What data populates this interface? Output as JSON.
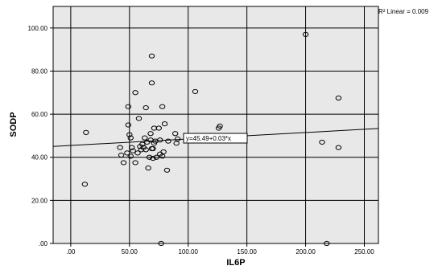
{
  "chart_data": {
    "type": "scatter",
    "title": "",
    "xlabel": "IL6P",
    "ylabel": "SODP",
    "xlim": [
      -15,
      262
    ],
    "ylim": [
      0,
      110
    ],
    "x_ticks": [
      0,
      50,
      100,
      150,
      200,
      250
    ],
    "y_ticks": [
      0,
      20,
      40,
      60,
      80,
      100
    ],
    "x_tick_labels": [
      ".00",
      "50.00",
      "100.00",
      "150.00",
      "200.00",
      "250.00"
    ],
    "y_tick_labels": [
      ".00",
      "20.00",
      "40.00",
      "60.00",
      "80.00",
      "100.00"
    ],
    "grid": true,
    "plot_background": "#e8e8e8",
    "point_color": "#000000",
    "fit_line": {
      "intercept": 45.49,
      "slope": 0.03,
      "label": "y=45.49+0.03*x"
    },
    "r2_label": "R² Linear = 0.009",
    "points": [
      {
        "x": 12,
        "y": 27.5
      },
      {
        "x": 13,
        "y": 51.5
      },
      {
        "x": 42,
        "y": 44.5
      },
      {
        "x": 43,
        "y": 41
      },
      {
        "x": 45,
        "y": 37.5
      },
      {
        "x": 48,
        "y": 42
      },
      {
        "x": 49,
        "y": 55
      },
      {
        "x": 49,
        "y": 63.5
      },
      {
        "x": 50,
        "y": 50.5
      },
      {
        "x": 51,
        "y": 49
      },
      {
        "x": 51,
        "y": 40.5
      },
      {
        "x": 52,
        "y": 44.5
      },
      {
        "x": 53,
        "y": 43
      },
      {
        "x": 55,
        "y": 37.5
      },
      {
        "x": 55,
        "y": 70
      },
      {
        "x": 57,
        "y": 42
      },
      {
        "x": 58,
        "y": 58
      },
      {
        "x": 59,
        "y": 45
      },
      {
        "x": 60,
        "y": 43.5
      },
      {
        "x": 61,
        "y": 46
      },
      {
        "x": 62,
        "y": 44.5
      },
      {
        "x": 63,
        "y": 49
      },
      {
        "x": 64,
        "y": 43.5
      },
      {
        "x": 64,
        "y": 63
      },
      {
        "x": 65,
        "y": 47
      },
      {
        "x": 66,
        "y": 35
      },
      {
        "x": 67,
        "y": 40
      },
      {
        "x": 68,
        "y": 48
      },
      {
        "x": 68,
        "y": 51
      },
      {
        "x": 69,
        "y": 44
      },
      {
        "x": 69,
        "y": 87
      },
      {
        "x": 69,
        "y": 74.5
      },
      {
        "x": 70,
        "y": 44
      },
      {
        "x": 70,
        "y": 39.5
      },
      {
        "x": 71,
        "y": 53.5
      },
      {
        "x": 71,
        "y": 46.5
      },
      {
        "x": 72,
        "y": 47.5
      },
      {
        "x": 73,
        "y": 40
      },
      {
        "x": 75,
        "y": 53.5
      },
      {
        "x": 76,
        "y": 48
      },
      {
        "x": 76,
        "y": 41.5
      },
      {
        "x": 77,
        "y": 0
      },
      {
        "x": 78,
        "y": 40.5
      },
      {
        "x": 78,
        "y": 63.5
      },
      {
        "x": 79,
        "y": 42.5
      },
      {
        "x": 80,
        "y": 55.5
      },
      {
        "x": 82,
        "y": 34
      },
      {
        "x": 83,
        "y": 47.5
      },
      {
        "x": 89,
        "y": 51
      },
      {
        "x": 90,
        "y": 46.5
      },
      {
        "x": 91,
        "y": 48.5
      },
      {
        "x": 106,
        "y": 70.5
      },
      {
        "x": 126,
        "y": 53.5
      },
      {
        "x": 127,
        "y": 54.5
      },
      {
        "x": 200,
        "y": 97
      },
      {
        "x": 214,
        "y": 47
      },
      {
        "x": 218,
        "y": 0
      },
      {
        "x": 228,
        "y": 67.5
      },
      {
        "x": 228,
        "y": 44.5
      }
    ]
  }
}
